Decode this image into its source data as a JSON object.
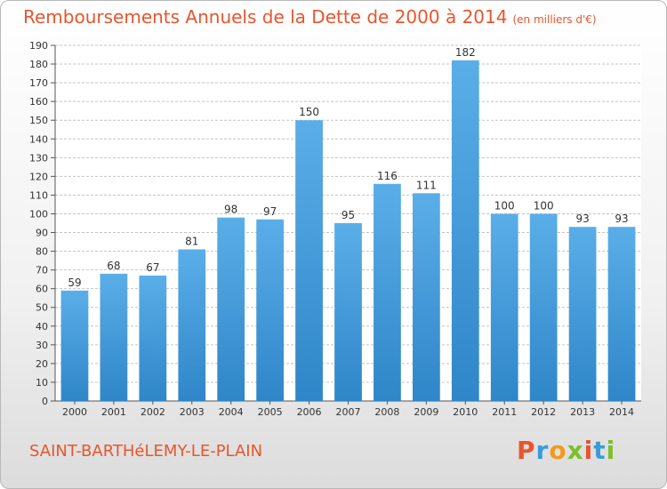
{
  "title": "Remboursements Annuels de la Dette de 2000 à 2014",
  "subtitle": "(en milliers d'€)",
  "town": "SAINT-BARTHéLEMY-LE-PLAIN",
  "logo": {
    "letters": [
      "P",
      "r",
      "o",
      "x",
      "i",
      "t",
      "i"
    ]
  },
  "colors": {
    "title": "#e8552e",
    "bar_top": "#5aaee8",
    "bar_bottom": "#2f86c8",
    "grid": "#c4c4c4"
  },
  "chart_data": {
    "type": "bar",
    "title": "Remboursements Annuels de la Dette de 2000 à 2014",
    "subtitle": "(en milliers d'€)",
    "xlabel": "",
    "ylabel": "",
    "categories": [
      "2000",
      "2001",
      "2002",
      "2003",
      "2004",
      "2005",
      "2006",
      "2007",
      "2008",
      "2009",
      "2010",
      "2011",
      "2012",
      "2013",
      "2014"
    ],
    "values": [
      59,
      68,
      67,
      81,
      98,
      97,
      150,
      95,
      116,
      111,
      182,
      100,
      100,
      93,
      93
    ],
    "ylim": [
      0,
      190
    ],
    "yticks": [
      0,
      10,
      20,
      30,
      40,
      50,
      60,
      70,
      80,
      90,
      100,
      110,
      120,
      130,
      140,
      150,
      160,
      170,
      180,
      190
    ],
    "grid": true,
    "legend": "none"
  }
}
